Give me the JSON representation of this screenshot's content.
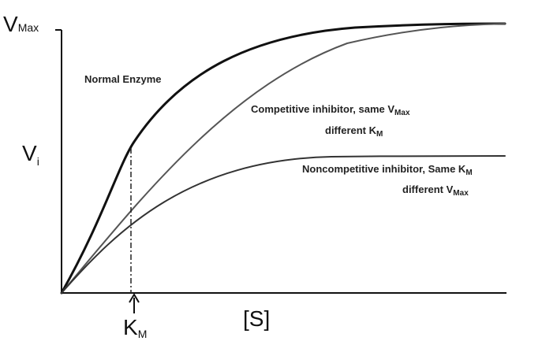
{
  "y_axis": {
    "top": {
      "main": "V",
      "sub": "Max"
    },
    "middle": {
      "main": "V",
      "sub": "i"
    }
  },
  "x_axis": {
    "marker": {
      "main": "K",
      "sub": "M"
    },
    "label": "[S]"
  },
  "curves": [
    {
      "lines": [
        {
          "main": "Normal Enzyme"
        }
      ]
    },
    {
      "lines": [
        {
          "main": "Competitive inhibitor,  same V",
          "sub": "Max"
        },
        {
          "main": "different K",
          "sub": "M"
        }
      ]
    },
    {
      "lines": [
        {
          "main": "Noncompetitive inhibitor,  Same K",
          "sub": "M"
        },
        {
          "main": "different V",
          "sub": "Max"
        }
      ]
    }
  ]
}
